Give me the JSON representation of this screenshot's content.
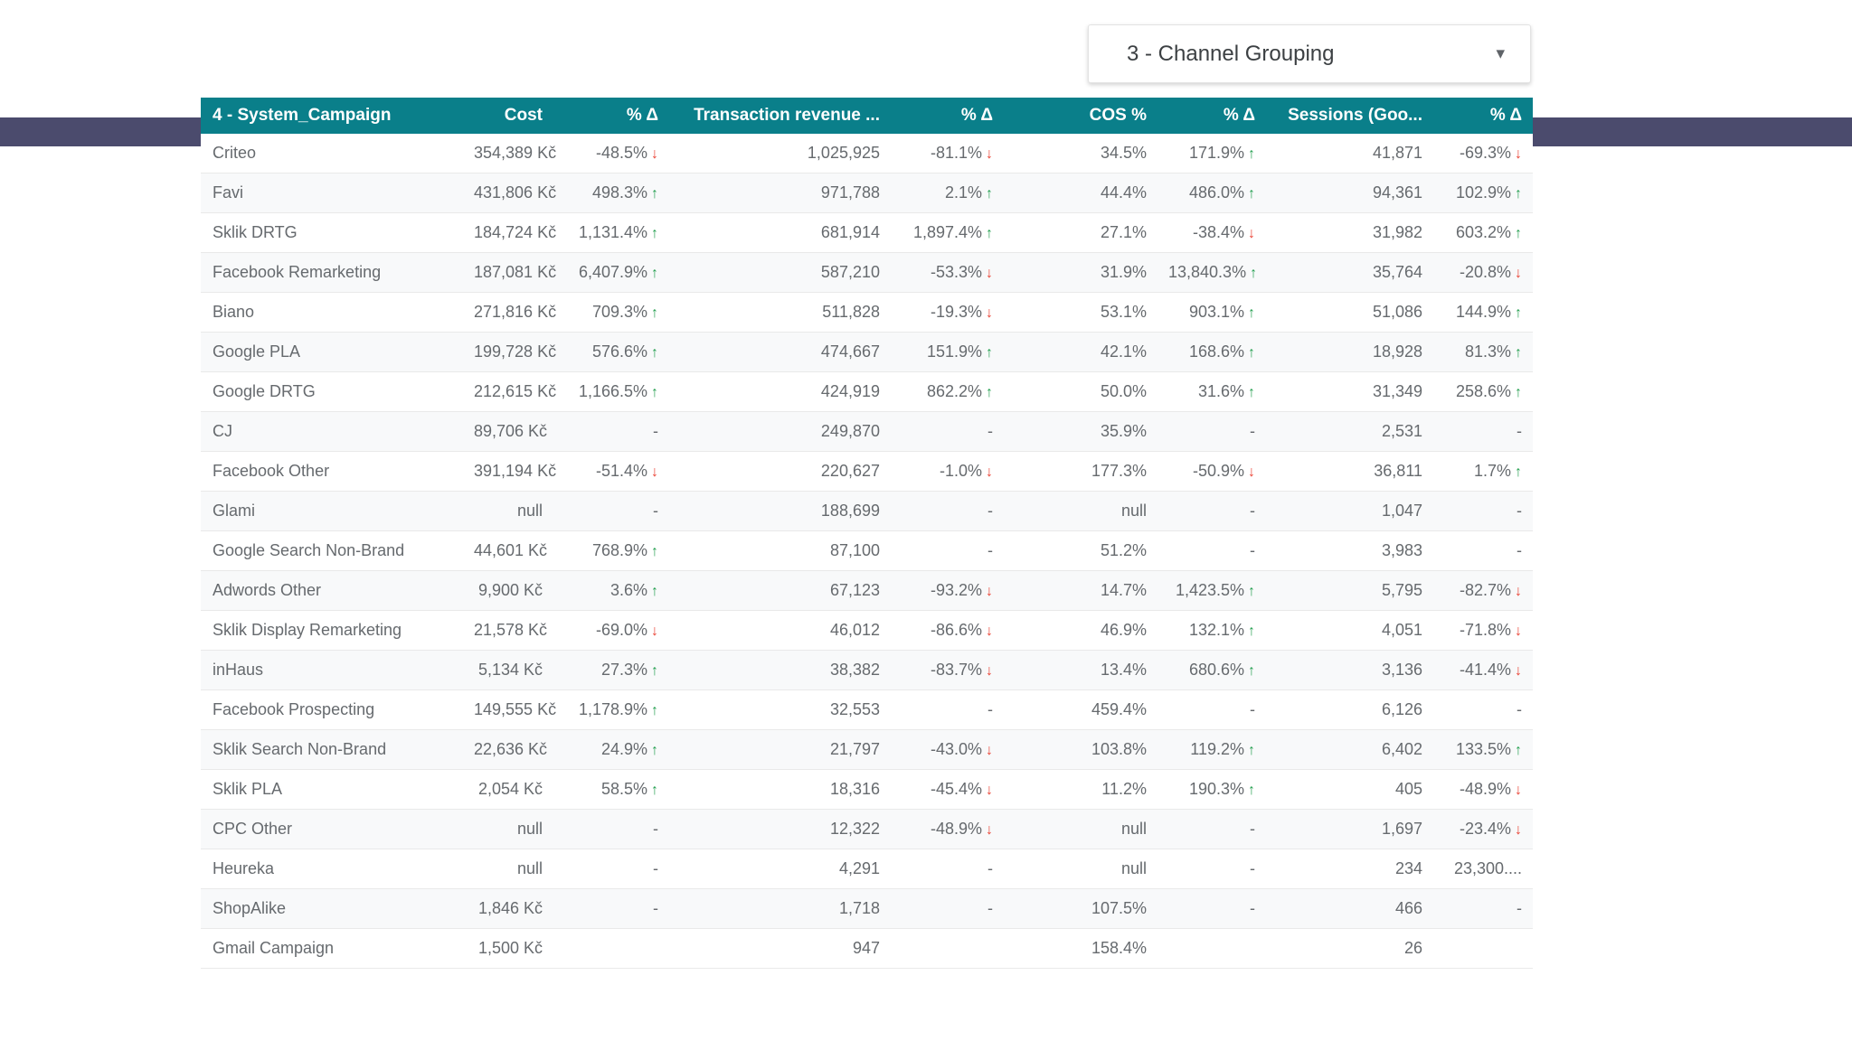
{
  "filter_dropdown": {
    "label": "3 - Channel Grouping"
  },
  "icons": {
    "trend_up": "↑",
    "trend_down": "↓",
    "chevron_down": "▾"
  },
  "colors": {
    "header_teal": "#0a7f8a",
    "accent_navy": "#4b4b6d",
    "positive_green": "#27a052",
    "negative_red": "#ea4335"
  },
  "table": {
    "columns": [
      {
        "key": "name",
        "label": "4 - System_Campaign",
        "align": "left",
        "type": "text"
      },
      {
        "key": "cost",
        "label": "Cost",
        "align": "right",
        "type": "text"
      },
      {
        "key": "cost_delta",
        "label": "% Δ",
        "align": "right",
        "type": "delta"
      },
      {
        "key": "revenue",
        "label": "Transaction revenue ...",
        "align": "right",
        "type": "text"
      },
      {
        "key": "revenue_delta",
        "label": "% Δ",
        "align": "right",
        "type": "delta"
      },
      {
        "key": "cos",
        "label": "COS %",
        "align": "right",
        "type": "text"
      },
      {
        "key": "cos_delta",
        "label": "% Δ",
        "align": "right",
        "type": "delta"
      },
      {
        "key": "sessions",
        "label": "Sessions (Goo...",
        "align": "right",
        "type": "text"
      },
      {
        "key": "sessions_delta",
        "label": "% Δ",
        "align": "right",
        "type": "delta"
      }
    ],
    "rows": [
      {
        "name": "Criteo",
        "cost": "354,389 Kč",
        "cost_delta": {
          "value": "-48.5%",
          "dir": "down"
        },
        "revenue": "1,025,925",
        "revenue_delta": {
          "value": "-81.1%",
          "dir": "down"
        },
        "cos": "34.5%",
        "cos_delta": {
          "value": "171.9%",
          "dir": "up"
        },
        "sessions": "41,871",
        "sessions_delta": {
          "value": "-69.3%",
          "dir": "down"
        }
      },
      {
        "name": "Favi",
        "cost": "431,806 Kč",
        "cost_delta": {
          "value": "498.3%",
          "dir": "up"
        },
        "revenue": "971,788",
        "revenue_delta": {
          "value": "2.1%",
          "dir": "up"
        },
        "cos": "44.4%",
        "cos_delta": {
          "value": "486.0%",
          "dir": "up"
        },
        "sessions": "94,361",
        "sessions_delta": {
          "value": "102.9%",
          "dir": "up"
        }
      },
      {
        "name": "Sklik DRTG",
        "cost": "184,724 Kč",
        "cost_delta": {
          "value": "1,131.4%",
          "dir": "up"
        },
        "revenue": "681,914",
        "revenue_delta": {
          "value": "1,897.4%",
          "dir": "up"
        },
        "cos": "27.1%",
        "cos_delta": {
          "value": "-38.4%",
          "dir": "down"
        },
        "sessions": "31,982",
        "sessions_delta": {
          "value": "603.2%",
          "dir": "up"
        }
      },
      {
        "name": "Facebook Remarketing",
        "cost": "187,081 Kč",
        "cost_delta": {
          "value": "6,407.9%",
          "dir": "up"
        },
        "revenue": "587,210",
        "revenue_delta": {
          "value": "-53.3%",
          "dir": "down"
        },
        "cos": "31.9%",
        "cos_delta": {
          "value": "13,840.3%",
          "dir": "up"
        },
        "sessions": "35,764",
        "sessions_delta": {
          "value": "-20.8%",
          "dir": "down"
        }
      },
      {
        "name": "Biano",
        "cost": "271,816 Kč",
        "cost_delta": {
          "value": "709.3%",
          "dir": "up"
        },
        "revenue": "511,828",
        "revenue_delta": {
          "value": "-19.3%",
          "dir": "down"
        },
        "cos": "53.1%",
        "cos_delta": {
          "value": "903.1%",
          "dir": "up"
        },
        "sessions": "51,086",
        "sessions_delta": {
          "value": "144.9%",
          "dir": "up"
        }
      },
      {
        "name": "Google PLA",
        "cost": "199,728 Kč",
        "cost_delta": {
          "value": "576.6%",
          "dir": "up"
        },
        "revenue": "474,667",
        "revenue_delta": {
          "value": "151.9%",
          "dir": "up"
        },
        "cos": "42.1%",
        "cos_delta": {
          "value": "168.6%",
          "dir": "up"
        },
        "sessions": "18,928",
        "sessions_delta": {
          "value": "81.3%",
          "dir": "up"
        }
      },
      {
        "name": "Google DRTG",
        "cost": "212,615 Kč",
        "cost_delta": {
          "value": "1,166.5%",
          "dir": "up"
        },
        "revenue": "424,919",
        "revenue_delta": {
          "value": "862.2%",
          "dir": "up"
        },
        "cos": "50.0%",
        "cos_delta": {
          "value": "31.6%",
          "dir": "up"
        },
        "sessions": "31,349",
        "sessions_delta": {
          "value": "258.6%",
          "dir": "up"
        }
      },
      {
        "name": "CJ",
        "cost": "89,706 Kč",
        "cost_delta": {
          "value": "-",
          "dir": null
        },
        "revenue": "249,870",
        "revenue_delta": {
          "value": "-",
          "dir": null
        },
        "cos": "35.9%",
        "cos_delta": {
          "value": "-",
          "dir": null
        },
        "sessions": "2,531",
        "sessions_delta": {
          "value": "-",
          "dir": null
        }
      },
      {
        "name": "Facebook Other",
        "cost": "391,194 Kč",
        "cost_delta": {
          "value": "-51.4%",
          "dir": "down"
        },
        "revenue": "220,627",
        "revenue_delta": {
          "value": "-1.0%",
          "dir": "down"
        },
        "cos": "177.3%",
        "cos_delta": {
          "value": "-50.9%",
          "dir": "down"
        },
        "sessions": "36,811",
        "sessions_delta": {
          "value": "1.7%",
          "dir": "up"
        }
      },
      {
        "name": "Glami",
        "cost": "null",
        "cost_delta": {
          "value": "-",
          "dir": null
        },
        "revenue": "188,699",
        "revenue_delta": {
          "value": "-",
          "dir": null
        },
        "cos": "null",
        "cos_delta": {
          "value": "-",
          "dir": null
        },
        "sessions": "1,047",
        "sessions_delta": {
          "value": "-",
          "dir": null
        }
      },
      {
        "name": "Google Search Non-Brand",
        "cost": "44,601 Kč",
        "cost_delta": {
          "value": "768.9%",
          "dir": "up"
        },
        "revenue": "87,100",
        "revenue_delta": {
          "value": "-",
          "dir": null
        },
        "cos": "51.2%",
        "cos_delta": {
          "value": "-",
          "dir": null
        },
        "sessions": "3,983",
        "sessions_delta": {
          "value": "-",
          "dir": null
        }
      },
      {
        "name": "Adwords Other",
        "cost": "9,900 Kč",
        "cost_delta": {
          "value": "3.6%",
          "dir": "up"
        },
        "revenue": "67,123",
        "revenue_delta": {
          "value": "-93.2%",
          "dir": "down"
        },
        "cos": "14.7%",
        "cos_delta": {
          "value": "1,423.5%",
          "dir": "up"
        },
        "sessions": "5,795",
        "sessions_delta": {
          "value": "-82.7%",
          "dir": "down"
        }
      },
      {
        "name": "Sklik Display Remarketing",
        "cost": "21,578 Kč",
        "cost_delta": {
          "value": "-69.0%",
          "dir": "down"
        },
        "revenue": "46,012",
        "revenue_delta": {
          "value": "-86.6%",
          "dir": "down"
        },
        "cos": "46.9%",
        "cos_delta": {
          "value": "132.1%",
          "dir": "up"
        },
        "sessions": "4,051",
        "sessions_delta": {
          "value": "-71.8%",
          "dir": "down"
        }
      },
      {
        "name": "inHaus",
        "cost": "5,134 Kč",
        "cost_delta": {
          "value": "27.3%",
          "dir": "up"
        },
        "revenue": "38,382",
        "revenue_delta": {
          "value": "-83.7%",
          "dir": "down"
        },
        "cos": "13.4%",
        "cos_delta": {
          "value": "680.6%",
          "dir": "up"
        },
        "sessions": "3,136",
        "sessions_delta": {
          "value": "-41.4%",
          "dir": "down"
        }
      },
      {
        "name": "Facebook Prospecting",
        "cost": "149,555 Kč",
        "cost_delta": {
          "value": "1,178.9%",
          "dir": "up"
        },
        "revenue": "32,553",
        "revenue_delta": {
          "value": "-",
          "dir": null
        },
        "cos": "459.4%",
        "cos_delta": {
          "value": "-",
          "dir": null
        },
        "sessions": "6,126",
        "sessions_delta": {
          "value": "-",
          "dir": null
        }
      },
      {
        "name": "Sklik Search Non-Brand",
        "cost": "22,636 Kč",
        "cost_delta": {
          "value": "24.9%",
          "dir": "up"
        },
        "revenue": "21,797",
        "revenue_delta": {
          "value": "-43.0%",
          "dir": "down"
        },
        "cos": "103.8%",
        "cos_delta": {
          "value": "119.2%",
          "dir": "up"
        },
        "sessions": "6,402",
        "sessions_delta": {
          "value": "133.5%",
          "dir": "up"
        }
      },
      {
        "name": "Sklik PLA",
        "cost": "2,054 Kč",
        "cost_delta": {
          "value": "58.5%",
          "dir": "up"
        },
        "revenue": "18,316",
        "revenue_delta": {
          "value": "-45.4%",
          "dir": "down"
        },
        "cos": "11.2%",
        "cos_delta": {
          "value": "190.3%",
          "dir": "up"
        },
        "sessions": "405",
        "sessions_delta": {
          "value": "-48.9%",
          "dir": "down"
        }
      },
      {
        "name": "CPC Other",
        "cost": "null",
        "cost_delta": {
          "value": "-",
          "dir": null
        },
        "revenue": "12,322",
        "revenue_delta": {
          "value": "-48.9%",
          "dir": "down"
        },
        "cos": "null",
        "cos_delta": {
          "value": "-",
          "dir": null
        },
        "sessions": "1,697",
        "sessions_delta": {
          "value": "-23.4%",
          "dir": "down"
        }
      },
      {
        "name": "Heureka",
        "cost": "null",
        "cost_delta": {
          "value": "-",
          "dir": null
        },
        "revenue": "4,291",
        "revenue_delta": {
          "value": "-",
          "dir": null
        },
        "cos": "null",
        "cos_delta": {
          "value": "-",
          "dir": null
        },
        "sessions": "234",
        "sessions_delta": {
          "value": "23,300....",
          "dir": null
        }
      },
      {
        "name": "ShopAlike",
        "cost": "1,846 Kč",
        "cost_delta": {
          "value": "-",
          "dir": null
        },
        "revenue": "1,718",
        "revenue_delta": {
          "value": "-",
          "dir": null
        },
        "cos": "107.5%",
        "cos_delta": {
          "value": "-",
          "dir": null
        },
        "sessions": "466",
        "sessions_delta": {
          "value": "-",
          "dir": null
        }
      },
      {
        "name": "Gmail Campaign",
        "cost": "1,500 Kč",
        "cost_delta": {
          "value": "",
          "dir": null
        },
        "revenue": "947",
        "revenue_delta": {
          "value": "",
          "dir": null
        },
        "cos": "158.4%",
        "cos_delta": {
          "value": "",
          "dir": null
        },
        "sessions": "26",
        "sessions_delta": {
          "value": "",
          "dir": null
        }
      }
    ]
  }
}
